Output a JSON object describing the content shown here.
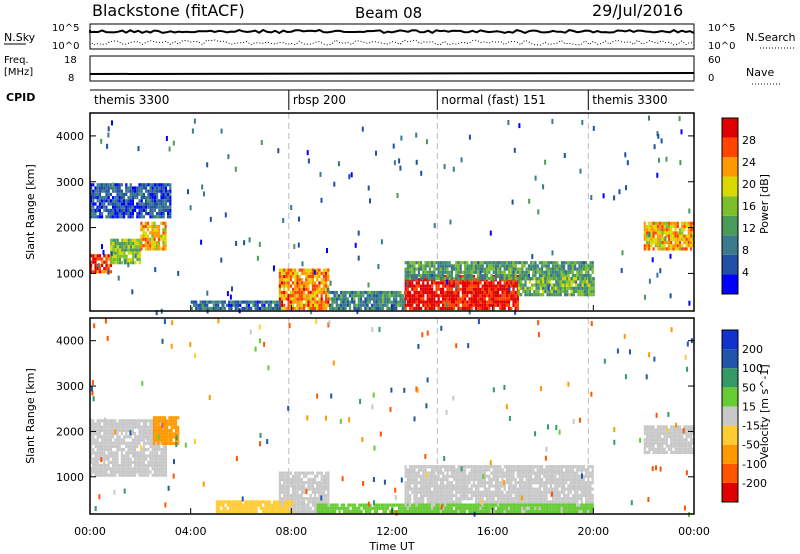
{
  "header": {
    "station": "Blackstone (fitACF)",
    "beam": "Beam 08",
    "date": "29/Jul/2016"
  },
  "chart_data": {
    "type": "heatmap",
    "time_axis": {
      "label": "Time UT",
      "ticks": [
        "00:00",
        "04:00",
        "08:00",
        "12:00",
        "16:00",
        "20:00",
        "00:00"
      ],
      "range_hours": [
        0,
        24
      ]
    },
    "noise_panel": {
      "left_label": "N.Sky",
      "right_label": "N.Search",
      "left_ticks": [
        "10^5",
        "10^0"
      ],
      "right_ticks": [
        "10^5",
        "10^0"
      ]
    },
    "freq_panel": {
      "left_label_1": "Freq.",
      "left_label_2": "[MHz]",
      "right_label": "Nave",
      "left_ticks": [
        "18",
        "8"
      ],
      "right_ticks": [
        "60",
        "0"
      ],
      "left_range": [
        8,
        18
      ],
      "right_range": [
        0,
        60
      ]
    },
    "cpid": {
      "label": "CPID",
      "segments": [
        {
          "name": "themis 3300",
          "start_h": 0
        },
        {
          "name": "rbsp 200",
          "start_h": 7.9
        },
        {
          "name": "normal (fast) 151",
          "start_h": 13.8
        },
        {
          "name": "themis 3300",
          "start_h": 19.8
        }
      ]
    },
    "power_panel": {
      "ylabel": "Slant Range [km]",
      "ylim": [
        180,
        4500
      ],
      "yticks": [
        1000,
        2000,
        3000,
        4000
      ],
      "colorbar_label": "Power [dB]",
      "colorbar_ticks": [
        4,
        8,
        12,
        16,
        20,
        24,
        28
      ],
      "colorbar_range": [
        0,
        32
      ],
      "colors": [
        "#0000ff",
        "#1f4fa6",
        "#3a7a8c",
        "#4a9a5a",
        "#7cbf2a",
        "#d9d900",
        "#ff9900",
        "#ff4400",
        "#e00000"
      ],
      "echo_regions": [
        {
          "t0": 0.0,
          "t1": 0.8,
          "r0": 1000,
          "r1": 1400,
          "power": 28
        },
        {
          "t0": 0.8,
          "t1": 2.0,
          "r0": 1200,
          "r1": 1700,
          "power": 16
        },
        {
          "t0": 2.0,
          "t1": 3.0,
          "r0": 1500,
          "r1": 2100,
          "power": 22
        },
        {
          "t0": 0.0,
          "t1": 3.2,
          "r0": 2200,
          "r1": 2900,
          "power": 6
        },
        {
          "t0": 7.5,
          "t1": 9.5,
          "r0": 200,
          "r1": 1100,
          "power": 24
        },
        {
          "t0": 9.5,
          "t1": 12.5,
          "r0": 200,
          "r1": 600,
          "power": 10
        },
        {
          "t0": 12.5,
          "t1": 17.0,
          "r0": 200,
          "r1": 900,
          "power": 30
        },
        {
          "t0": 12.5,
          "t1": 20.0,
          "r0": 850,
          "r1": 1200,
          "power": 12
        },
        {
          "t0": 17.0,
          "t1": 20.0,
          "r0": 500,
          "r1": 850,
          "power": 14
        },
        {
          "t0": 22.0,
          "t1": 24.0,
          "r0": 1500,
          "r1": 2100,
          "power": 22
        },
        {
          "t0": 4.0,
          "t1": 7.5,
          "r0": 200,
          "r1": 400,
          "power": 8
        }
      ]
    },
    "velocity_panel": {
      "ylabel": "Slant Range [km]",
      "ylim": [
        180,
        4500
      ],
      "yticks": [
        1000,
        2000,
        3000,
        4000
      ],
      "colorbar_label": "Velocity [m s^-1]",
      "colorbar_ticks": [
        200,
        100,
        50,
        15,
        -15,
        -50,
        -100,
        -200
      ],
      "colors": [
        "#e00000",
        "#ff5500",
        "#ff9900",
        "#ffcc33",
        "#c8c8c8",
        "#66cc33",
        "#339966",
        "#2255aa",
        "#1133cc"
      ],
      "echo_regions": [
        {
          "t0": 0.0,
          "t1": 3.0,
          "r0": 1000,
          "r1": 2200,
          "velocity": -5
        },
        {
          "t0": 2.5,
          "t1": 3.5,
          "r0": 1700,
          "r1": 2300,
          "velocity": -60
        },
        {
          "t0": 7.5,
          "t1": 9.5,
          "r0": 200,
          "r1": 1100,
          "velocity": 0
        },
        {
          "t0": 5.0,
          "t1": 8.0,
          "r0": 200,
          "r1": 450,
          "velocity": -40
        },
        {
          "t0": 12.5,
          "t1": 20.0,
          "r0": 200,
          "r1": 1200,
          "velocity": 5
        },
        {
          "t0": 22.0,
          "t1": 24.0,
          "r0": 1500,
          "r1": 2100,
          "velocity": -5
        },
        {
          "t0": 9.0,
          "t1": 20.0,
          "r0": 200,
          "r1": 400,
          "velocity": 40
        }
      ]
    }
  }
}
